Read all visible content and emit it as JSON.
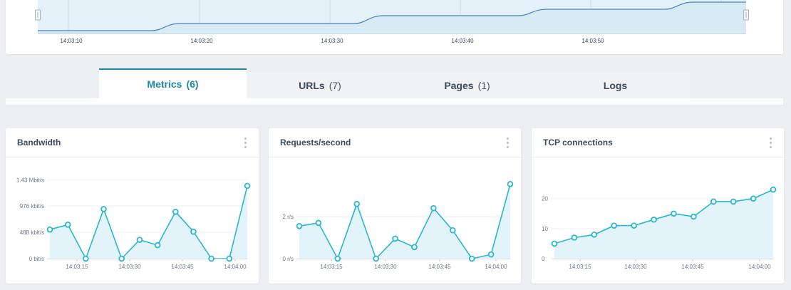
{
  "timeline": {
    "ticks": [
      "14:03:10",
      "14:03:20",
      "14:03:30",
      "14:03:40",
      "14:03:50"
    ],
    "colors": {
      "line": "#4a7fc1",
      "fill": "#e4f1f8",
      "handle": "#f7f7f7"
    }
  },
  "tabs": [
    {
      "label": "Metrics",
      "count": "(6)",
      "active": true
    },
    {
      "label": "URLs",
      "count": "(7)",
      "active": false
    },
    {
      "label": "Pages",
      "count": "(1)",
      "active": false
    },
    {
      "label": "Logs",
      "count": "",
      "active": false
    }
  ],
  "panels": [
    {
      "title": "Bandwidth",
      "menu_icon": "kebab-menu-icon"
    },
    {
      "title": "Requests/second",
      "menu_icon": "kebab-menu-icon"
    },
    {
      "title": "TCP connections",
      "menu_icon": "kebab-menu-icon"
    }
  ],
  "colors": {
    "accent": "#1a8aa6",
    "series": "#29b6cf",
    "area": "#dff3f8"
  },
  "chart_data": [
    {
      "type": "line",
      "title": "Bandwidth",
      "x_ticks": [
        "14:03:15",
        "14:03:30",
        "14:03:45",
        "14:04:00"
      ],
      "y_ticks": [
        "0 bit/s",
        "488 kbit/s",
        "976 kbit/s",
        "1.43 Mbit/s"
      ],
      "y_tick_values": [
        0,
        488,
        976,
        1464
      ],
      "unit": "kbit/s",
      "ylim": [
        0,
        1560
      ],
      "x": [
        10,
        15,
        20,
        25,
        30,
        35,
        40,
        45,
        50,
        55,
        60,
        65
      ],
      "values": [
        540,
        630,
        0,
        920,
        0,
        350,
        250,
        870,
        500,
        0,
        0,
        1350
      ]
    },
    {
      "type": "line",
      "title": "Requests/second",
      "x_ticks": [
        "14:03:15",
        "14:03:30",
        "14:03:45",
        "14:04:00"
      ],
      "y_ticks": [
        "0 r/s",
        "2 r/s"
      ],
      "y_tick_values": [
        0,
        2
      ],
      "ylim": [
        0,
        4
      ],
      "x": [
        10,
        15,
        20,
        25,
        30,
        35,
        40,
        45,
        50,
        55,
        60,
        65
      ],
      "values": [
        1.55,
        1.7,
        0,
        2.6,
        0,
        0.95,
        0.55,
        2.4,
        1.35,
        0,
        0.2,
        3.55
      ]
    },
    {
      "type": "area",
      "title": "TCP connections",
      "x_ticks": [
        "14:03:15",
        "14:03:30",
        "14:03:45",
        "14:04:00"
      ],
      "y_ticks": [
        "0",
        "10",
        "20"
      ],
      "y_tick_values": [
        0,
        10,
        20
      ],
      "ylim": [
        0,
        28
      ],
      "x": [
        10,
        15,
        20,
        25,
        30,
        35,
        40,
        45,
        50,
        55,
        60,
        65
      ],
      "values": [
        5,
        7,
        8,
        11,
        11,
        13,
        15,
        14,
        19,
        19,
        20,
        23
      ]
    }
  ]
}
